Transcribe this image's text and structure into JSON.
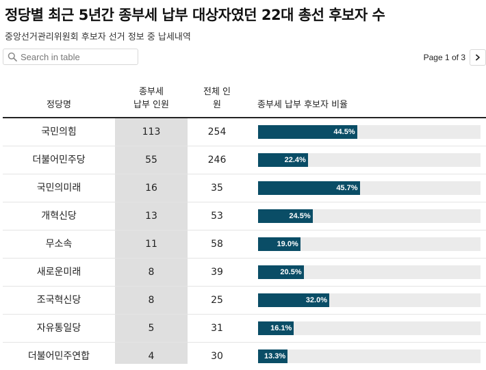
{
  "header": {
    "title": "정당별 최근 5년간 종부세 납부 대상자였던 22대 총선 후보자 수",
    "subtitle": "중앙선거관리위원회 후보자 선거 정보 중 납세내역"
  },
  "search": {
    "placeholder": "Search in table"
  },
  "pagination": {
    "label": "Page 1 of 3",
    "next_icon": "chevron-right-icon"
  },
  "colors": {
    "bar": "#0a4d66",
    "track": "#ebebeb",
    "shade": "#dfdfdf"
  },
  "chart_data": {
    "type": "table",
    "columns": {
      "party": "정당명",
      "payers": [
        "종부세",
        "납부 인원"
      ],
      "total": [
        "전체 인",
        "원"
      ],
      "ratio": "종부세 납부 후보자 비율"
    },
    "rows": [
      {
        "party": "국민의힘",
        "payers": "113",
        "total": "254",
        "ratio": 44.5,
        "ratio_label": "44.5%"
      },
      {
        "party": "더불어민주당",
        "payers": "55",
        "total": "246",
        "ratio": 22.4,
        "ratio_label": "22.4%"
      },
      {
        "party": "국민의미래",
        "payers": "16",
        "total": "35",
        "ratio": 45.7,
        "ratio_label": "45.7%"
      },
      {
        "party": "개혁신당",
        "payers": "13",
        "total": "53",
        "ratio": 24.5,
        "ratio_label": "24.5%"
      },
      {
        "party": "무소속",
        "payers": "11",
        "total": "58",
        "ratio": 19.0,
        "ratio_label": "19.0%"
      },
      {
        "party": "새로운미래",
        "payers": "8",
        "total": "39",
        "ratio": 20.5,
        "ratio_label": "20.5%"
      },
      {
        "party": "조국혁신당",
        "payers": "8",
        "total": "25",
        "ratio": 32.0,
        "ratio_label": "32.0%"
      },
      {
        "party": "자유통일당",
        "payers": "5",
        "total": "31",
        "ratio": 16.1,
        "ratio_label": "16.1%"
      },
      {
        "party": "더불어민주연합",
        "payers": "4",
        "total": "30",
        "ratio": 13.3,
        "ratio_label": "13.3%"
      }
    ],
    "ratio_max": 100
  }
}
